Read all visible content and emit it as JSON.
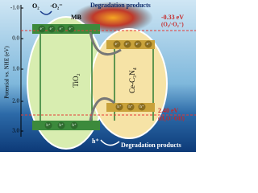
{
  "axis": {
    "label": "Potential vs. NHE (eV)",
    "ticks": [
      "-1.0",
      "0.0",
      "1.0",
      "2.0",
      "3.0"
    ]
  },
  "top": {
    "o2": "O₂",
    "superoxide": "·O₂⁻",
    "mb": "MB",
    "products": "Degradation products"
  },
  "levels": {
    "upper_value": "-0.33 eV",
    "upper_couple": "(O₂/·O₂⁻)",
    "lower_value": "2.40 eV",
    "lower_couple": "(H₂O/·OH)"
  },
  "materials": {
    "left": "TiO₂",
    "right": "Ce-C₃N₄"
  },
  "carriers": {
    "electron": "e⁻",
    "hole": "h⁺"
  },
  "bottom": {
    "hole": "h⁺",
    "products": "Degradation products"
  }
}
